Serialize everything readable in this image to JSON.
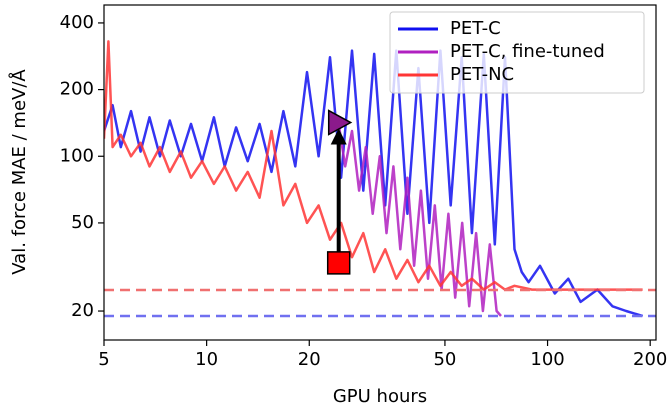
{
  "chart_data": {
    "type": "line",
    "xlabel": "GPU hours",
    "ylabel": "Val. force MAE / meV/Å",
    "xscale": "log",
    "yscale": "log",
    "xlim": [
      5,
      208
    ],
    "ylim": [
      14.8,
      482
    ],
    "xticks": [
      5,
      10,
      20,
      50,
      100,
      200
    ],
    "yticks": [
      20,
      50,
      100,
      200,
      400
    ],
    "legend": "upper right",
    "series": [
      {
        "name": "PET-C",
        "color": "#1010f0",
        "x": [
          5,
          5.3,
          5.6,
          6,
          6.4,
          6.8,
          7.3,
          7.8,
          8.4,
          9,
          9.7,
          10.5,
          11.3,
          12.2,
          13.2,
          14.3,
          15.5,
          16.8,
          18.2,
          19.7,
          21.3,
          23,
          24.8,
          26.7,
          28.8,
          31,
          33.4,
          36,
          38.8,
          41.8,
          45,
          48.5,
          52,
          56,
          60,
          65,
          70,
          75,
          80,
          84,
          88,
          95,
          105,
          115,
          125,
          140,
          155,
          170,
          190
        ],
        "values": [
          130,
          170,
          110,
          160,
          105,
          150,
          100,
          145,
          100,
          140,
          95,
          150,
          90,
          135,
          95,
          140,
          85,
          160,
          90,
          240,
          100,
          280,
          80,
          300,
          70,
          290,
          60,
          300,
          55,
          250,
          50,
          300,
          60,
          280,
          45,
          290,
          40,
          280,
          38,
          30,
          27,
          32,
          24,
          28,
          22,
          25,
          21,
          20,
          19
        ]
      },
      {
        "name": "PET-C, fine-tuned",
        "color": "#b020c0",
        "x": [
          24.4,
          25.5,
          26.7,
          28,
          29.3,
          30.7,
          32.2,
          33.7,
          35.3,
          37,
          38.8,
          40.6,
          42.5,
          44.6,
          46.7,
          48.9,
          51.2,
          53.6,
          56.2,
          58.9,
          61.7,
          64.6,
          67.7,
          70.9,
          73
        ],
        "values": [
          140,
          90,
          130,
          70,
          110,
          55,
          100,
          45,
          90,
          38,
          80,
          32,
          70,
          28,
          60,
          25,
          55,
          23,
          50,
          21,
          45,
          20,
          40,
          20,
          19
        ]
      },
      {
        "name": "PET-NC",
        "color": "#ff3535",
        "x": [
          5,
          5.15,
          5.3,
          5.6,
          6,
          6.4,
          6.8,
          7.3,
          7.8,
          8.4,
          9,
          9.7,
          10.5,
          11.3,
          12.2,
          13.2,
          14.3,
          15.5,
          16.8,
          18.2,
          19.7,
          21.3,
          23,
          24.8,
          26.7,
          28.8,
          31,
          33.4,
          36,
          38.8,
          41.8,
          45,
          48.5,
          52,
          56,
          60,
          65,
          70,
          75,
          80,
          90,
          100,
          115,
          130,
          150,
          170,
          190
        ],
        "values": [
          120,
          330,
          110,
          125,
          100,
          115,
          90,
          110,
          85,
          105,
          80,
          95,
          75,
          90,
          70,
          85,
          65,
          130,
          60,
          75,
          50,
          60,
          42,
          50,
          35,
          45,
          30,
          38,
          28,
          34,
          27,
          32,
          26,
          30,
          26,
          28,
          25,
          27,
          25,
          26,
          25,
          25,
          25,
          25,
          25,
          25,
          25
        ]
      }
    ],
    "hlines": [
      {
        "y": 24.9,
        "color": "#f07070"
      },
      {
        "y": 19,
        "color": "#7070f0"
      }
    ],
    "markers": [
      {
        "x": 24.4,
        "y": 33,
        "shape": "square",
        "color": "#ff0000"
      },
      {
        "x": 24.4,
        "y": 142,
        "shape": "triangle-right",
        "color": "#8b1a8b"
      }
    ]
  }
}
